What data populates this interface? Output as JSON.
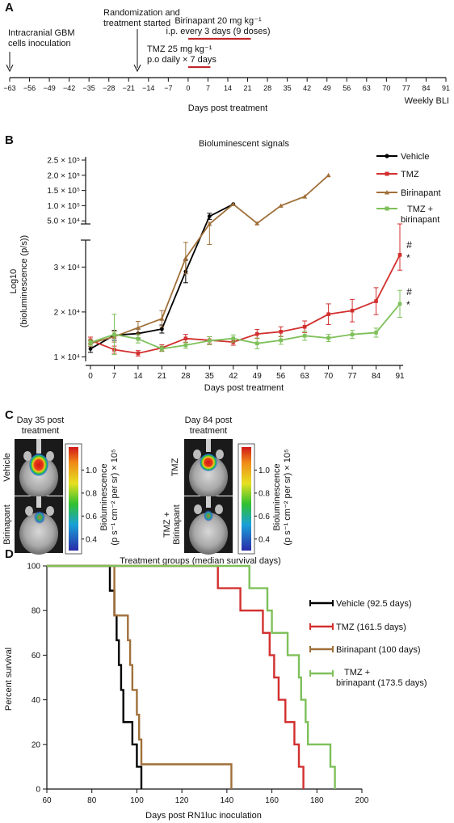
{
  "panels": {
    "a": "A",
    "b": "B",
    "c": "C",
    "d": "D"
  },
  "timeline": {
    "inoculation_label": [
      "Intracranial GBM",
      "cells inoculation"
    ],
    "randomization_label": [
      "Randomization and",
      "treatment started"
    ],
    "birinapant_label": [
      "Birinapant 20 mg kg⁻¹",
      "i.p. every 3 days (9 doses)"
    ],
    "tmz_label": [
      "TMZ 25 mg kg⁻¹",
      "p.o daily × 7 days"
    ],
    "ticks": [
      "−63",
      "−56",
      "−49",
      "−42",
      "−35",
      "−28",
      "−21",
      "−14",
      "−7",
      "0",
      "7",
      "14",
      "21",
      "28",
      "35",
      "42",
      "49",
      "56",
      "63",
      "70",
      "77",
      "84",
      "91"
    ],
    "tick_values": [
      -63,
      -56,
      -49,
      -42,
      -35,
      -28,
      -21,
      -14,
      -7,
      0,
      7,
      14,
      21,
      28,
      35,
      42,
      49,
      56,
      63,
      70,
      77,
      84,
      91
    ],
    "xlabel": "Days post treatment",
    "bli_label": "Weekly BLI",
    "birinapant_range": [
      0,
      21
    ],
    "tmz_range": [
      0,
      7
    ],
    "bar_color": "#c0272d"
  },
  "chart_data": [
    {
      "type": "line",
      "title": "Bioluminescent signals",
      "ylabel": [
        "Log10",
        "(bioluminescence (p/s))"
      ],
      "xlabel": "Days post treatment",
      "x_ticks": [
        0,
        7,
        14,
        21,
        28,
        35,
        42,
        49,
        56,
        63,
        70,
        77,
        84,
        91
      ],
      "x_tick_labels": [
        "0",
        "7",
        "14",
        "21",
        "28",
        "35",
        "42",
        "49",
        "56",
        "63",
        "70",
        "77",
        "84",
        "91"
      ],
      "upper_y_ticks": [
        50000,
        100000,
        150000,
        200000,
        250000
      ],
      "upper_y_tick_labels": [
        "5.0 × 10⁴",
        "1.0 × 10⁵",
        "1.5 × 10⁵",
        "2.0 × 10⁵",
        "2.5 × 10⁵"
      ],
      "upper_ylim": [
        40000,
        250000
      ],
      "lower_y_ticks": [
        10000,
        20000,
        30000
      ],
      "lower_y_tick_labels": [
        "1 × 10⁴",
        "2 × 10⁴",
        "3 × 10⁴"
      ],
      "lower_ylim": [
        9000,
        36000
      ],
      "series": [
        {
          "name": "Vehicle",
          "color": "#000000",
          "marker": "circle",
          "x": [
            0,
            7,
            14,
            21,
            28,
            35,
            42
          ],
          "y": [
            11800,
            14800,
            15200,
            16200,
            29000,
            65000,
            105000
          ],
          "err": [
            800,
            1100,
            1000,
            900,
            2500,
            10000,
            0
          ]
        },
        {
          "name": "TMZ",
          "color": "#d2302f",
          "marker": "square",
          "x": [
            0,
            7,
            14,
            21,
            28,
            35,
            42,
            49,
            56,
            63,
            70,
            77,
            84,
            91
          ],
          "y": [
            13700,
            11600,
            10800,
            12000,
            14100,
            13700,
            13300,
            15100,
            15600,
            16700,
            19500,
            20300,
            22400,
            32700
          ],
          "err": [
            700,
            800,
            600,
            700,
            900,
            800,
            700,
            1000,
            1100,
            1300,
            2300,
            2500,
            3000,
            3400
          ]
        },
        {
          "name": "Birinapant",
          "color": "#a0703a",
          "marker": "triangle",
          "x": [
            0,
            7,
            14,
            21,
            28,
            35,
            42,
            49,
            56,
            63,
            70
          ],
          "y": [
            13000,
            14500,
            16500,
            18500,
            32000,
            40000,
            105000,
            42000,
            100000,
            130000,
            200000
          ],
          "err": [
            700,
            1200,
            1400,
            1800,
            3500,
            5000,
            0,
            0,
            0,
            0,
            0
          ]
        },
        {
          "name": "TMZ + birinapant",
          "color": "#7ec05a",
          "marker": "square",
          "x": [
            0,
            7,
            14,
            21,
            28,
            35,
            42,
            49,
            56,
            63,
            70,
            77,
            84,
            91
          ],
          "y": [
            13200,
            15000,
            14000,
            11800,
            12600,
            13600,
            14100,
            13000,
            13700,
            14700,
            14200,
            15000,
            15400,
            21800
          ],
          "err": [
            600,
            4500,
            900,
            600,
            700,
            900,
            800,
            1200,
            900,
            1000,
            800,
            900,
            1000,
            3000
          ]
        }
      ],
      "legend": [
        "Vehicle",
        "TMZ",
        "Birinapant",
        "TMZ +\nbirinapant"
      ],
      "legend_placement": "top-right",
      "annotations": [
        "#",
        "*",
        "#",
        "*"
      ]
    },
    {
      "type": "line",
      "subtype": "kaplan-meier",
      "title": "Treatment groups (median survival days)",
      "xlabel": "Days post RN1luc inoculation",
      "ylabel": "Percent survival",
      "x_ticks": [
        60,
        80,
        100,
        120,
        140,
        160,
        180,
        200
      ],
      "y_ticks": [
        0,
        20,
        40,
        60,
        80,
        100
      ],
      "xlim": [
        60,
        200
      ],
      "ylim": [
        0,
        100
      ],
      "series": [
        {
          "name": "Vehicle (92.5 days)",
          "color": "#000000",
          "steps": [
            [
              60,
              100
            ],
            [
              88,
              100
            ],
            [
              88,
              88.9
            ],
            [
              90,
              88.9
            ],
            [
              90,
              77.8
            ],
            [
              91,
              77.8
            ],
            [
              91,
              66.7
            ],
            [
              92,
              66.7
            ],
            [
              92,
              55.6
            ],
            [
              93,
              55.6
            ],
            [
              93,
              44.4
            ],
            [
              94,
              44.4
            ],
            [
              94,
              30
            ],
            [
              98,
              30
            ],
            [
              98,
              20
            ],
            [
              100,
              20
            ],
            [
              100,
              10
            ],
            [
              102,
              10
            ],
            [
              102,
              0
            ]
          ],
          "censor": []
        },
        {
          "name": "TMZ (161.5 days)",
          "color": "#d2302f",
          "steps": [
            [
              60,
              100
            ],
            [
              136,
              100
            ],
            [
              136,
              90
            ],
            [
              146,
              90
            ],
            [
              146,
              80
            ],
            [
              156,
              80
            ],
            [
              156,
              70
            ],
            [
              159,
              70
            ],
            [
              159,
              60
            ],
            [
              161,
              60
            ],
            [
              161,
              50
            ],
            [
              163,
              50
            ],
            [
              163,
              40
            ],
            [
              166,
              40
            ],
            [
              166,
              30
            ],
            [
              170,
              30
            ],
            [
              170,
              20
            ],
            [
              172,
              20
            ],
            [
              172,
              10
            ],
            [
              174,
              10
            ],
            [
              174,
              0
            ]
          ],
          "censor": []
        },
        {
          "name": "Birinapant (100 days)",
          "color": "#a0703a",
          "steps": [
            [
              60,
              100
            ],
            [
              90,
              100
            ],
            [
              90,
              77.8
            ],
            [
              96,
              77.8
            ],
            [
              96,
              66.7
            ],
            [
              97,
              66.7
            ],
            [
              97,
              55.6
            ],
            [
              98,
              55.6
            ],
            [
              98,
              44.4
            ],
            [
              100,
              44.4
            ],
            [
              100,
              33.3
            ],
            [
              101,
              33.3
            ],
            [
              101,
              22.2
            ],
            [
              102,
              22.2
            ],
            [
              102,
              11.1
            ],
            [
              142,
              11.1
            ],
            [
              142,
              0
            ]
          ],
          "censor": []
        },
        {
          "name": "TMZ + birinapant (173.5 days)",
          "color": "#7ec05a",
          "steps": [
            [
              60,
              100
            ],
            [
              150,
              100
            ],
            [
              150,
              90
            ],
            [
              158,
              90
            ],
            [
              158,
              80
            ],
            [
              160,
              80
            ],
            [
              160,
              70
            ],
            [
              167,
              70
            ],
            [
              167,
              60
            ],
            [
              172,
              60
            ],
            [
              172,
              50
            ],
            [
              173,
              50
            ],
            [
              173,
              40
            ],
            [
              175,
              40
            ],
            [
              175,
              30
            ],
            [
              176,
              30
            ],
            [
              176,
              20
            ],
            [
              186,
              20
            ],
            [
              186,
              10
            ],
            [
              188,
              10
            ],
            [
              188,
              0
            ]
          ],
          "censor": []
        }
      ],
      "legend": [
        "Vehicle (92.5 days)",
        "TMZ (161.5 days)",
        "Birinapant (100 days)",
        "TMZ +\nbirinapant (173.5 days)"
      ],
      "legend_placement": "right"
    }
  ],
  "imaging": {
    "left_title": [
      "Day 35 post",
      "treatment"
    ],
    "right_title": [
      "Day 84 post",
      "treatment"
    ],
    "left_rows": [
      "Vehicle",
      "Birinapant"
    ],
    "right_rows": [
      "TMZ",
      "TMZ +\nBirinapant"
    ],
    "colorbar_ticks": [
      "1.0",
      "0.8",
      "0.6",
      "0.4"
    ],
    "colorbar_tick_values": [
      1.0,
      0.8,
      0.6,
      0.4
    ],
    "colorbar_label": [
      "Bioluminescence",
      "(p s⁻¹ cm⁻² per sr) × 10⁵"
    ]
  }
}
